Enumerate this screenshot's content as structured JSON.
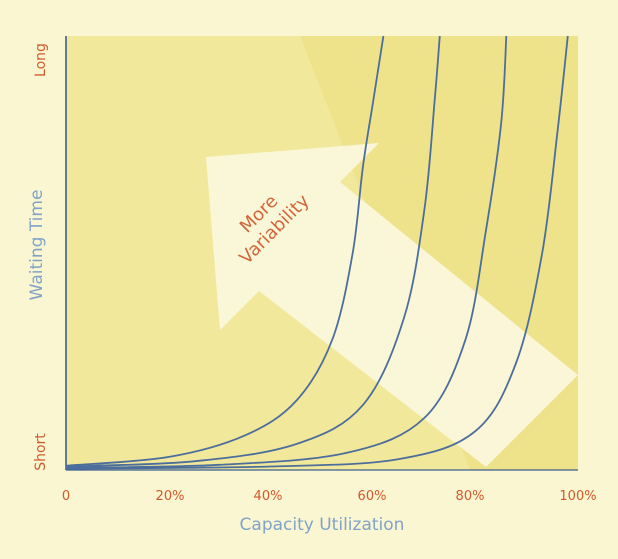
{
  "chart_data": {
    "type": "line",
    "title": "",
    "xlabel": "Capacity Utilization",
    "ylabel": "Waiting Time",
    "x_ticks": [
      "0",
      "20%",
      "40%",
      "60%",
      "80%",
      "100%"
    ],
    "y_ticks": [
      "Short",
      "Long"
    ],
    "xlim": [
      0,
      100
    ],
    "ylim": [
      0,
      100
    ],
    "annotation": {
      "text_lines": [
        "More",
        "Variability"
      ],
      "arrow_direction": "up-left"
    },
    "series": [
      {
        "points": [
          [
            0,
            1
          ],
          [
            20,
            3
          ],
          [
            35,
            8
          ],
          [
            45,
            16
          ],
          [
            52,
            30
          ],
          [
            56,
            50
          ],
          [
            58,
            70
          ],
          [
            60,
            85
          ],
          [
            62,
            100
          ]
        ]
      },
      {
        "points": [
          [
            0,
            0.8
          ],
          [
            25,
            2
          ],
          [
            45,
            6
          ],
          [
            58,
            15
          ],
          [
            66,
            35
          ],
          [
            70,
            60
          ],
          [
            72,
            85
          ],
          [
            73,
            100
          ]
        ]
      },
      {
        "points": [
          [
            0,
            0.5
          ],
          [
            30,
            1.2
          ],
          [
            55,
            4
          ],
          [
            70,
            12
          ],
          [
            78,
            30
          ],
          [
            82,
            55
          ],
          [
            85,
            80
          ],
          [
            86,
            100
          ]
        ]
      },
      {
        "points": [
          [
            0,
            0.3
          ],
          [
            40,
            0.8
          ],
          [
            65,
            2.5
          ],
          [
            80,
            9
          ],
          [
            88,
            25
          ],
          [
            93,
            50
          ],
          [
            96,
            78
          ],
          [
            98,
            100
          ]
        ]
      }
    ],
    "colors": {
      "background": "#f6efb3",
      "plot_light": "#f2e89b",
      "plot_darker": "#ebdd80",
      "arrow": "#fbf8df",
      "curve": "#4c6e9c",
      "tick_text": "#d25a2c",
      "axis_title": "#7fa3c9",
      "axis_line": "#3b5f8f"
    }
  }
}
